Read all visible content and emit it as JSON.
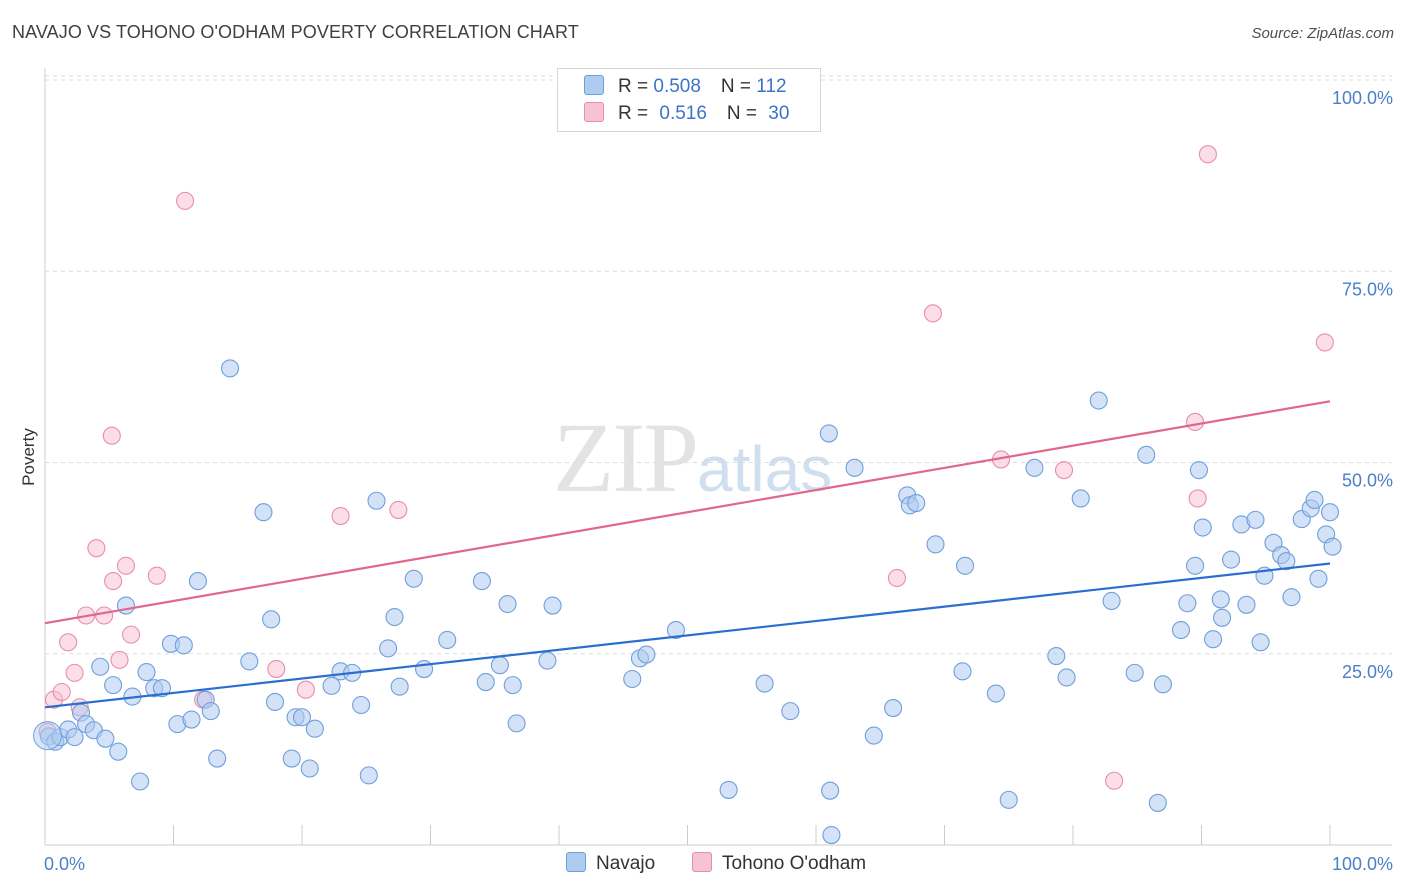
{
  "title": "NAVAJO VS TOHONO O'ODHAM POVERTY CORRELATION CHART",
  "source": "Source: ZipAtlas.com",
  "watermark": {
    "zip": "ZIP",
    "atlas": "atlas"
  },
  "legend": {
    "navajo": {
      "r_label": "R = ",
      "r": "0.508",
      "n_label": "N = ",
      "n": "112"
    },
    "tohono": {
      "r_label": "R = ",
      "r": "0.516",
      "n_label": "N = ",
      "n": "30"
    }
  },
  "bottom_legend": {
    "navajo": "Navajo",
    "tohono": "Tohono O'odham"
  },
  "colors": {
    "navajo_fill": "#aecbf0",
    "navajo_stroke": "#6f9fdb",
    "navajo_line": "#2a6fd0",
    "tohono_fill": "#f7c3d3",
    "tohono_stroke": "#e98eaa",
    "tohono_line": "#e0668e",
    "tick": "#4a7fc9",
    "grid": "#dddddd"
  },
  "chart_data": {
    "type": "scatter",
    "title": "NAVAJO VS TOHONO O'ODHAM POVERTY CORRELATION CHART",
    "xlabel": "",
    "ylabel": "Poverty",
    "xlim": [
      0,
      100
    ],
    "ylim": [
      0,
      100
    ],
    "x_tick_labels": [
      "0.0%",
      "100.0%"
    ],
    "y_ticks": [
      25,
      50,
      75,
      100
    ],
    "y_tick_labels": [
      "25.0%",
      "50.0%",
      "75.0%",
      "100.0%"
    ],
    "series": [
      {
        "name": "Navajo",
        "r": 0.508,
        "n": 112,
        "trend": [
          [
            0,
            18.0
          ],
          [
            100,
            36.8
          ]
        ],
        "points": [
          [
            0.3,
            14.2
          ],
          [
            0.8,
            13.5
          ],
          [
            1.2,
            14.1
          ],
          [
            1.8,
            15.1
          ],
          [
            2.3,
            14.1
          ],
          [
            2.8,
            17.3
          ],
          [
            3.2,
            15.8
          ],
          [
            3.8,
            15.0
          ],
          [
            4.3,
            23.3
          ],
          [
            4.7,
            13.9
          ],
          [
            5.3,
            20.9
          ],
          [
            5.7,
            12.2
          ],
          [
            6.3,
            31.3
          ],
          [
            6.8,
            19.4
          ],
          [
            7.4,
            8.3
          ],
          [
            7.9,
            22.6
          ],
          [
            8.5,
            20.5
          ],
          [
            9.1,
            20.5
          ],
          [
            9.8,
            26.3
          ],
          [
            10.3,
            15.8
          ],
          [
            10.8,
            26.1
          ],
          [
            11.4,
            16.4
          ],
          [
            11.9,
            34.5
          ],
          [
            12.5,
            19.0
          ],
          [
            12.9,
            17.5
          ],
          [
            13.4,
            11.3
          ],
          [
            14.4,
            62.3
          ],
          [
            15.9,
            24.0
          ],
          [
            17.0,
            43.5
          ],
          [
            17.6,
            29.5
          ],
          [
            17.9,
            18.7
          ],
          [
            19.2,
            11.3
          ],
          [
            19.5,
            16.7
          ],
          [
            20.0,
            16.7
          ],
          [
            20.6,
            10.0
          ],
          [
            21.0,
            15.2
          ],
          [
            22.3,
            20.8
          ],
          [
            23.0,
            22.7
          ],
          [
            23.9,
            22.5
          ],
          [
            24.6,
            18.3
          ],
          [
            25.2,
            9.1
          ],
          [
            25.8,
            45.0
          ],
          [
            26.7,
            25.7
          ],
          [
            27.2,
            29.8
          ],
          [
            27.6,
            20.7
          ],
          [
            28.7,
            34.8
          ],
          [
            29.5,
            23.0
          ],
          [
            31.3,
            26.8
          ],
          [
            34.0,
            34.5
          ],
          [
            34.3,
            21.3
          ],
          [
            35.4,
            23.5
          ],
          [
            36.0,
            31.5
          ],
          [
            36.4,
            20.9
          ],
          [
            36.7,
            15.9
          ],
          [
            39.1,
            24.1
          ],
          [
            39.5,
            31.3
          ],
          [
            45.7,
            21.7
          ],
          [
            46.3,
            24.4
          ],
          [
            46.8,
            24.9
          ],
          [
            49.1,
            28.1
          ],
          [
            53.2,
            7.2
          ],
          [
            56.0,
            21.1
          ],
          [
            58.0,
            17.5
          ],
          [
            61.0,
            53.8
          ],
          [
            61.1,
            7.1
          ],
          [
            61.2,
            1.3
          ],
          [
            63.0,
            49.3
          ],
          [
            64.5,
            14.3
          ],
          [
            66.0,
            17.9
          ],
          [
            67.1,
            45.7
          ],
          [
            67.3,
            44.4
          ],
          [
            67.8,
            44.7
          ],
          [
            69.3,
            39.3
          ],
          [
            71.4,
            22.7
          ],
          [
            71.6,
            36.5
          ],
          [
            74.0,
            19.8
          ],
          [
            75.0,
            5.9
          ],
          [
            77.0,
            49.3
          ],
          [
            78.7,
            24.7
          ],
          [
            79.5,
            21.9
          ],
          [
            80.6,
            45.3
          ],
          [
            82.0,
            58.1
          ],
          [
            83.0,
            31.9
          ],
          [
            84.8,
            22.5
          ],
          [
            85.7,
            51.0
          ],
          [
            86.6,
            5.5
          ],
          [
            87.0,
            21.0
          ],
          [
            88.4,
            28.1
          ],
          [
            88.9,
            31.6
          ],
          [
            89.5,
            36.5
          ],
          [
            89.8,
            49.0
          ],
          [
            90.1,
            41.5
          ],
          [
            90.9,
            26.9
          ],
          [
            91.5,
            32.1
          ],
          [
            91.6,
            29.7
          ],
          [
            92.3,
            37.3
          ],
          [
            93.1,
            41.9
          ],
          [
            93.5,
            31.4
          ],
          [
            94.2,
            42.5
          ],
          [
            94.6,
            26.5
          ],
          [
            94.9,
            35.2
          ],
          [
            95.6,
            39.5
          ],
          [
            96.2,
            37.9
          ],
          [
            96.6,
            37.1
          ],
          [
            97.0,
            32.4
          ],
          [
            97.8,
            42.6
          ],
          [
            98.5,
            44.0
          ],
          [
            98.8,
            45.1
          ],
          [
            99.1,
            34.8
          ],
          [
            99.7,
            40.6
          ],
          [
            100.0,
            43.5
          ],
          [
            100.2,
            39.0
          ]
        ]
      },
      {
        "name": "Tohono O'odham",
        "r": 0.516,
        "n": 30,
        "trend": [
          [
            0,
            29.0
          ],
          [
            100,
            58.0
          ]
        ],
        "points": [
          [
            0.2,
            14.8
          ],
          [
            0.7,
            19.0
          ],
          [
            1.3,
            20.0
          ],
          [
            1.8,
            26.5
          ],
          [
            2.3,
            22.5
          ],
          [
            2.7,
            18.0
          ],
          [
            3.2,
            30.0
          ],
          [
            4.0,
            38.8
          ],
          [
            4.6,
            30.0
          ],
          [
            5.2,
            53.5
          ],
          [
            5.3,
            34.5
          ],
          [
            5.8,
            24.2
          ],
          [
            6.3,
            36.5
          ],
          [
            6.7,
            27.5
          ],
          [
            8.7,
            35.2
          ],
          [
            10.9,
            84.2
          ],
          [
            12.3,
            19.0
          ],
          [
            18.0,
            23.0
          ],
          [
            20.3,
            20.3
          ],
          [
            23.0,
            43.0
          ],
          [
            27.5,
            43.8
          ],
          [
            66.3,
            34.9
          ],
          [
            69.1,
            69.5
          ],
          [
            74.4,
            50.4
          ],
          [
            79.3,
            49.0
          ],
          [
            83.2,
            8.4
          ],
          [
            89.5,
            55.3
          ],
          [
            89.7,
            45.3
          ],
          [
            90.5,
            90.3
          ],
          [
            99.6,
            65.7
          ]
        ]
      }
    ]
  }
}
